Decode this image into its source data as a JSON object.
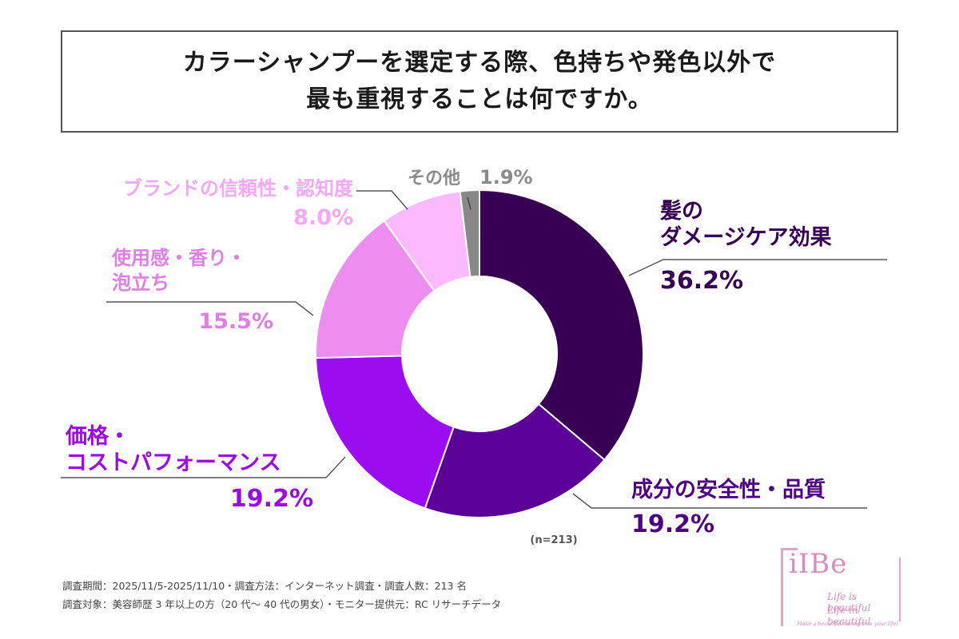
{
  "title": {
    "line1": "カラーシャンプーを選定する際、色持ちや発色以外で",
    "line2": "最も重視することは何ですか。"
  },
  "chart_data": {
    "type": "pie",
    "donut": true,
    "slices": [
      {
        "lines": [
          "髪の",
          "ダメージケア効果"
        ],
        "value": 36.2,
        "value_label": "36.2%",
        "color": "#380055"
      },
      {
        "lines": [
          "成分の安全性・品質"
        ],
        "value": 19.2,
        "value_label": "19.2%",
        "color": "#5b0198"
      },
      {
        "lines": [
          "価格・",
          "コストパフォーマンス"
        ],
        "value": 19.2,
        "value_label": "19.2%",
        "color": "#9c0cf0"
      },
      {
        "lines": [
          "使用感・香り・",
          "泡立ち"
        ],
        "value": 15.5,
        "value_label": "15.5%",
        "color": "#ee8df0"
      },
      {
        "lines": [
          "ブランドの信頼性・認知度"
        ],
        "value": 8.0,
        "value_label": "8.0%",
        "color": "#fbbafc"
      },
      {
        "lines": [
          "その他"
        ],
        "value": 1.9,
        "value_label": "1.9%",
        "color": "#888888"
      }
    ],
    "sample_size": "(n=213)"
  },
  "footer": {
    "line1": "調査期間：2025/11/5-2025/11/10・調査方法：インターネット調査・調査人数：213 名",
    "line2": "調査対象：美容師歴 3 年以上の方（20 代～ 40 代の男女）・モニター提供元：RC リサーチデータ"
  },
  "logo": {
    "brand": "iIBe",
    "tagline1": "Life is beautiful",
    "tagline2": "Life in beautiful",
    "tagline3": "Make a beautiful moment on your life!"
  }
}
